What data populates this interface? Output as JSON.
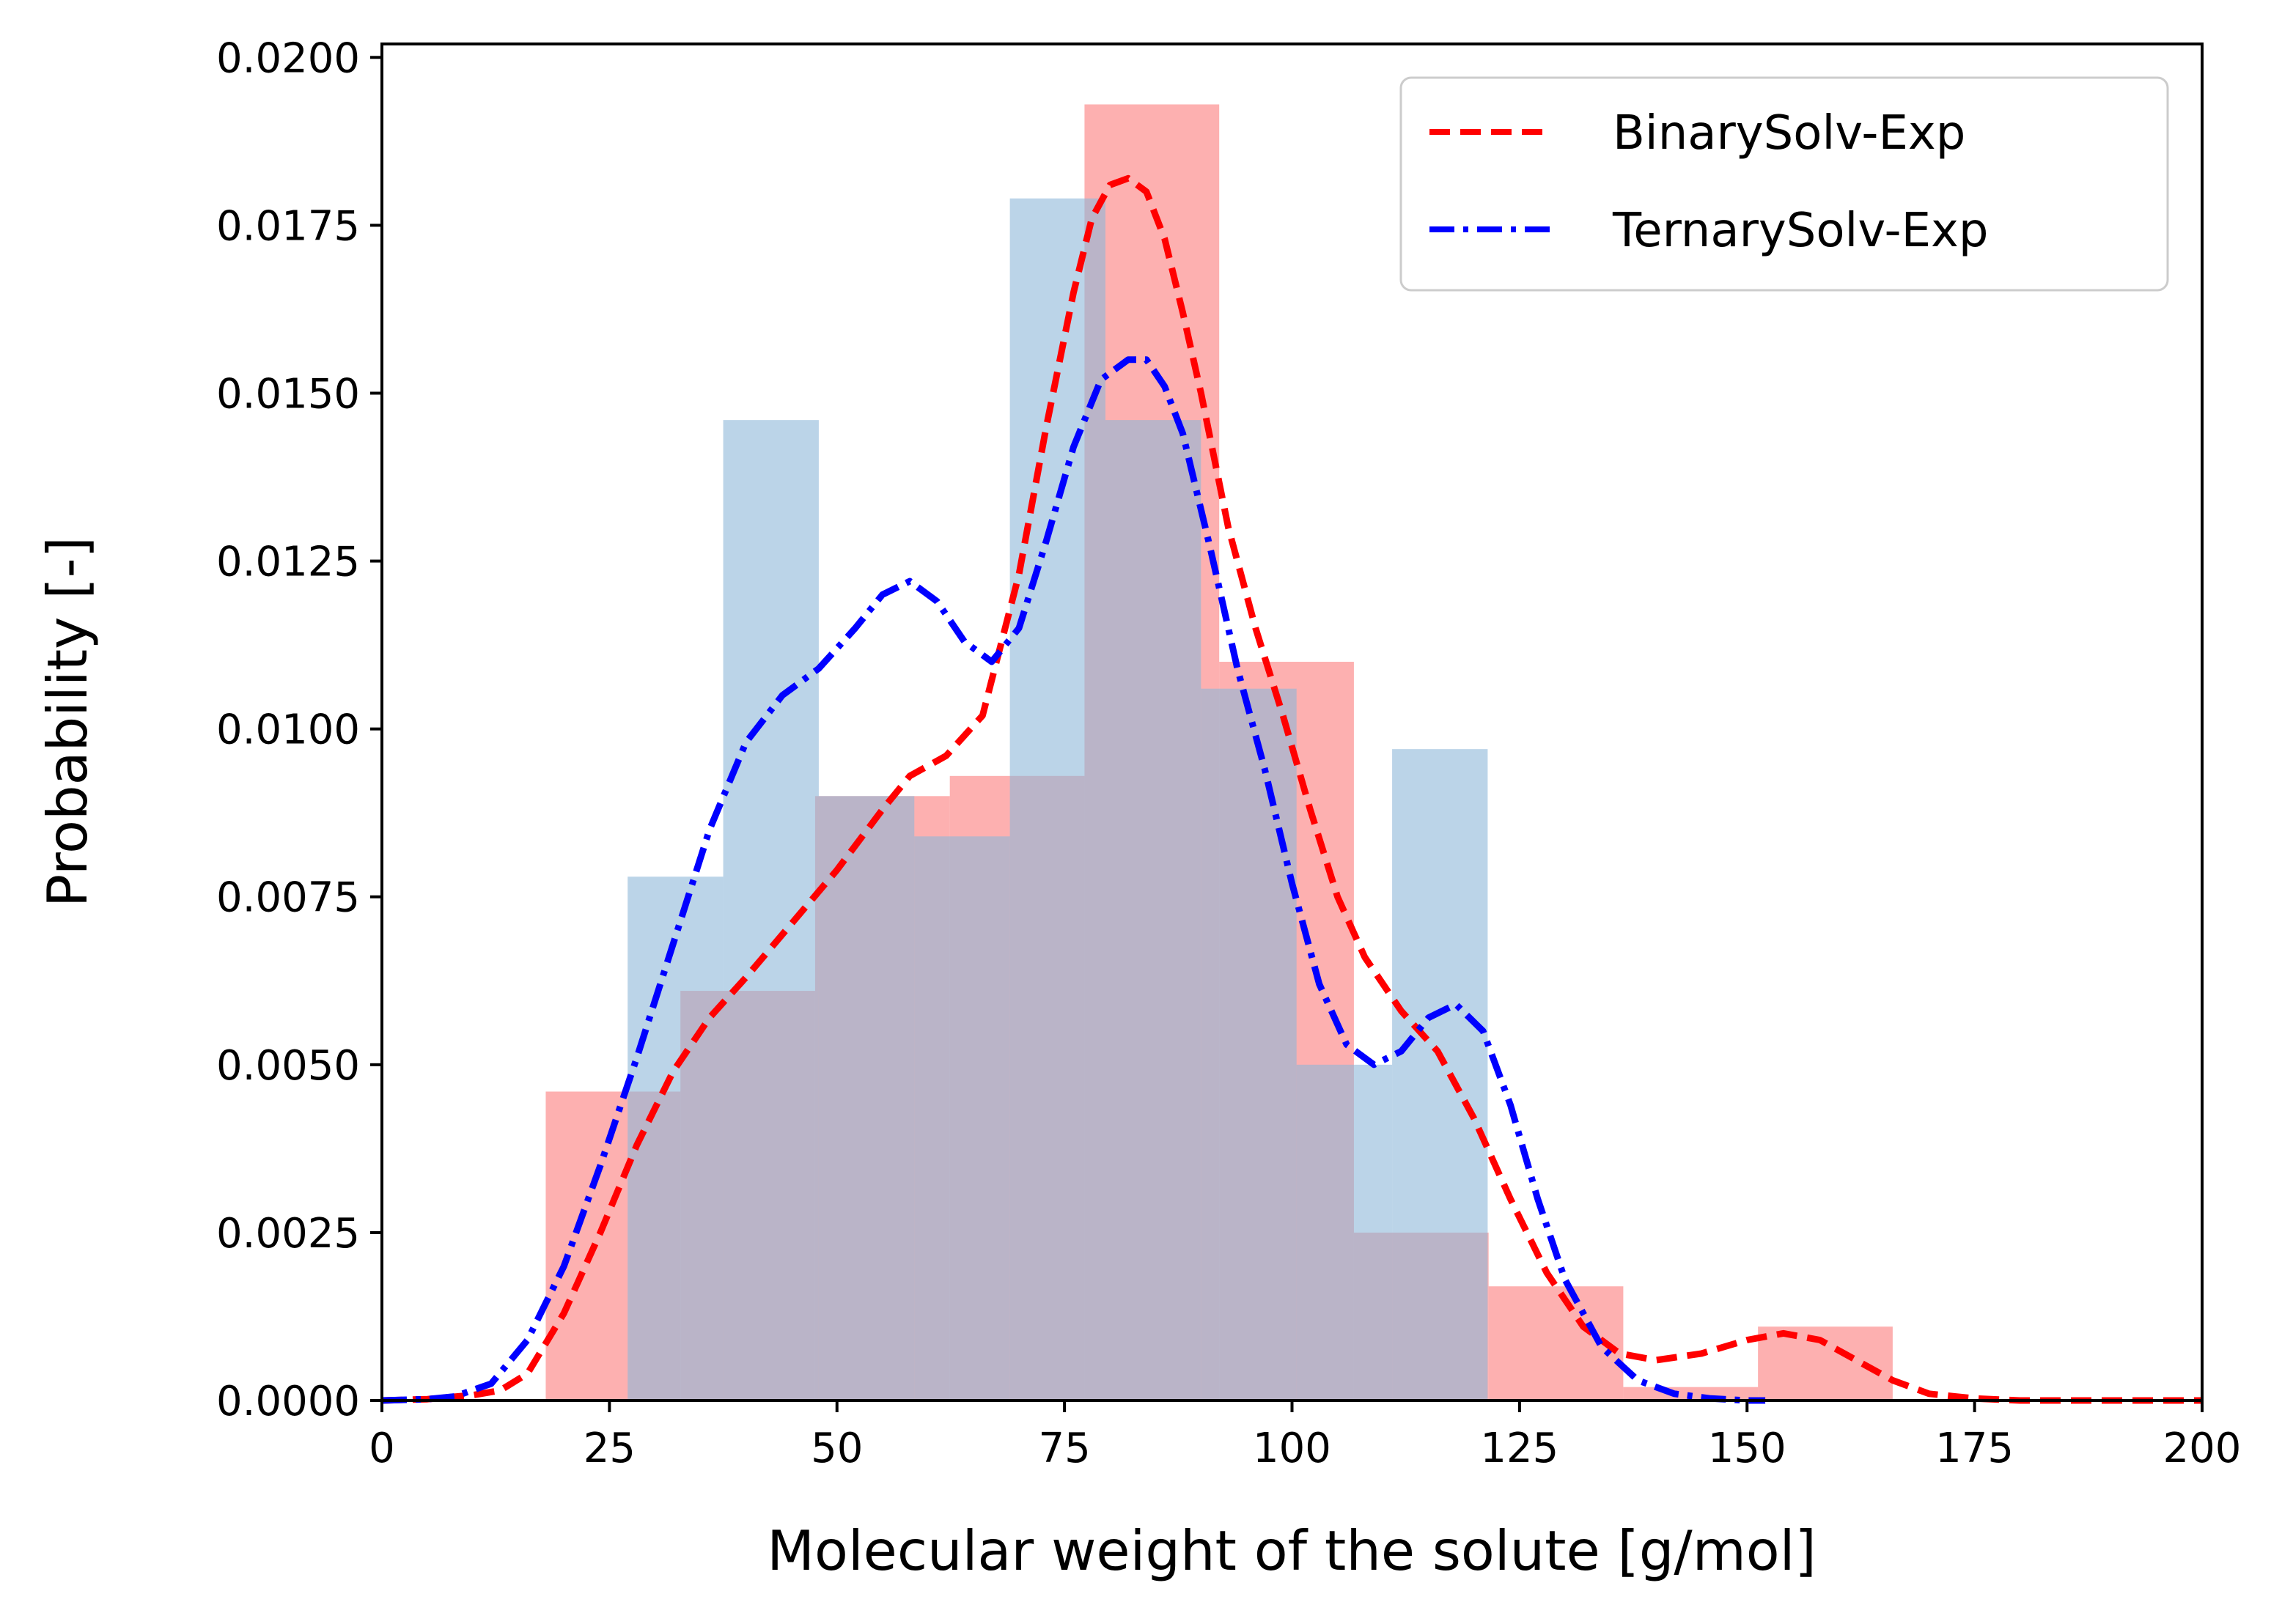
{
  "chart_data": {
    "type": "histogram+kde",
    "xlabel": "Molecular weight of the solute [g/mol]",
    "ylabel": "Probability [-]",
    "xlim": [
      0,
      200
    ],
    "ylim": [
      0,
      0.0202
    ],
    "xticks": [
      0,
      25,
      50,
      75,
      100,
      125,
      150,
      175,
      200
    ],
    "xtick_labels": [
      "0",
      "25",
      "50",
      "75",
      "100",
      "125",
      "150",
      "175",
      "200"
    ],
    "yticks": [
      0,
      0.0025,
      0.005,
      0.0075,
      0.01,
      0.0125,
      0.015,
      0.0175,
      0.02
    ],
    "ytick_labels": [
      "0.0000",
      "0.0025",
      "0.0050",
      "0.0075",
      "0.0100",
      "0.0125",
      "0.0150",
      "0.0175",
      "0.0200"
    ],
    "legend": {
      "position": "top-right",
      "entries": [
        {
          "label": "BinarySolv-Exp",
          "color": "#ff0000",
          "style": "dashed"
        },
        {
          "label": "TernarySolv-Exp",
          "color": "#0000ff",
          "style": "dashdot"
        }
      ]
    },
    "histograms": [
      {
        "name": "BinarySolv-Exp",
        "color": "#fb7c7c",
        "opacity": 0.6,
        "bin_edges": [
          18,
          32.8,
          47.6,
          62.4,
          77.2,
          92,
          106.8,
          121.6,
          136.4,
          151.2,
          166
        ],
        "values": [
          0.0046,
          0.0061,
          0.009,
          0.0093,
          0.0193,
          0.011,
          0.0025,
          0.0017,
          0.0002,
          0.0011
        ]
      },
      {
        "name": "TernarySolv-Exp",
        "color": "#8db8d8",
        "opacity": 0.6,
        "bin_edges": [
          27,
          37.5,
          48,
          58.5,
          69,
          79.5,
          90,
          100.5,
          111,
          121.5
        ],
        "values": [
          0.0078,
          0.0146,
          0.009,
          0.0084,
          0.0179,
          0.0146,
          0.0106,
          0.005,
          0.0097
        ]
      }
    ],
    "series": [
      {
        "name": "BinarySolv-Exp KDE",
        "color": "#ff0000",
        "style": "dashed",
        "x": [
          0,
          5,
          10,
          13,
          16,
          20,
          24,
          28,
          32,
          36,
          40,
          45,
          50,
          55,
          58,
          62,
          66,
          70,
          73,
          76,
          78,
          80,
          82,
          84,
          86,
          88,
          90,
          93,
          96,
          99,
          102,
          105,
          108,
          112,
          116,
          120,
          124,
          128,
          132,
          136,
          140,
          145,
          150,
          154,
          158,
          162,
          166,
          170,
          175,
          180,
          190,
          200
        ],
        "y": [
          0,
          2e-05,
          8e-05,
          0.00015,
          0.0004,
          0.0013,
          0.0025,
          0.0038,
          0.0049,
          0.0057,
          0.0063,
          0.0071,
          0.0079,
          0.0088,
          0.0093,
          0.0096,
          0.0102,
          0.0123,
          0.0145,
          0.0165,
          0.0176,
          0.0181,
          0.0182,
          0.018,
          0.0173,
          0.0162,
          0.015,
          0.013,
          0.0115,
          0.0102,
          0.0088,
          0.0075,
          0.0066,
          0.0058,
          0.0052,
          0.0042,
          0.003,
          0.0019,
          0.0011,
          0.0007,
          0.0006,
          0.0007,
          0.0009,
          0.001,
          0.0009,
          0.0006,
          0.0003,
          0.0001,
          3e-05,
          0,
          0,
          0
        ]
      },
      {
        "name": "TernarySolv-Exp KDE",
        "color": "#0000ff",
        "style": "dashdot",
        "x": [
          0,
          5,
          8,
          12,
          16,
          20,
          24,
          28,
          32,
          36,
          40,
          44,
          48,
          52,
          55,
          58,
          61,
          64,
          67,
          70,
          73,
          76,
          79,
          82,
          84,
          86,
          88,
          91,
          94,
          97,
          100,
          103,
          106,
          109,
          112,
          115,
          118,
          121,
          124,
          127,
          130,
          134,
          138,
          142,
          146,
          150,
          152
        ],
        "y": [
          0,
          2e-05,
          6e-05,
          0.00025,
          0.0009,
          0.002,
          0.0035,
          0.0051,
          0.0068,
          0.0085,
          0.0098,
          0.0105,
          0.0109,
          0.0115,
          0.012,
          0.0122,
          0.0119,
          0.0113,
          0.011,
          0.0115,
          0.0128,
          0.0142,
          0.0152,
          0.0155,
          0.0155,
          0.0151,
          0.0144,
          0.0127,
          0.0109,
          0.0094,
          0.0077,
          0.0062,
          0.0053,
          0.005,
          0.0052,
          0.0057,
          0.0059,
          0.0055,
          0.0044,
          0.003,
          0.0018,
          0.0008,
          0.0003,
          0.0001,
          3e-05,
          0,
          0
        ]
      }
    ]
  }
}
